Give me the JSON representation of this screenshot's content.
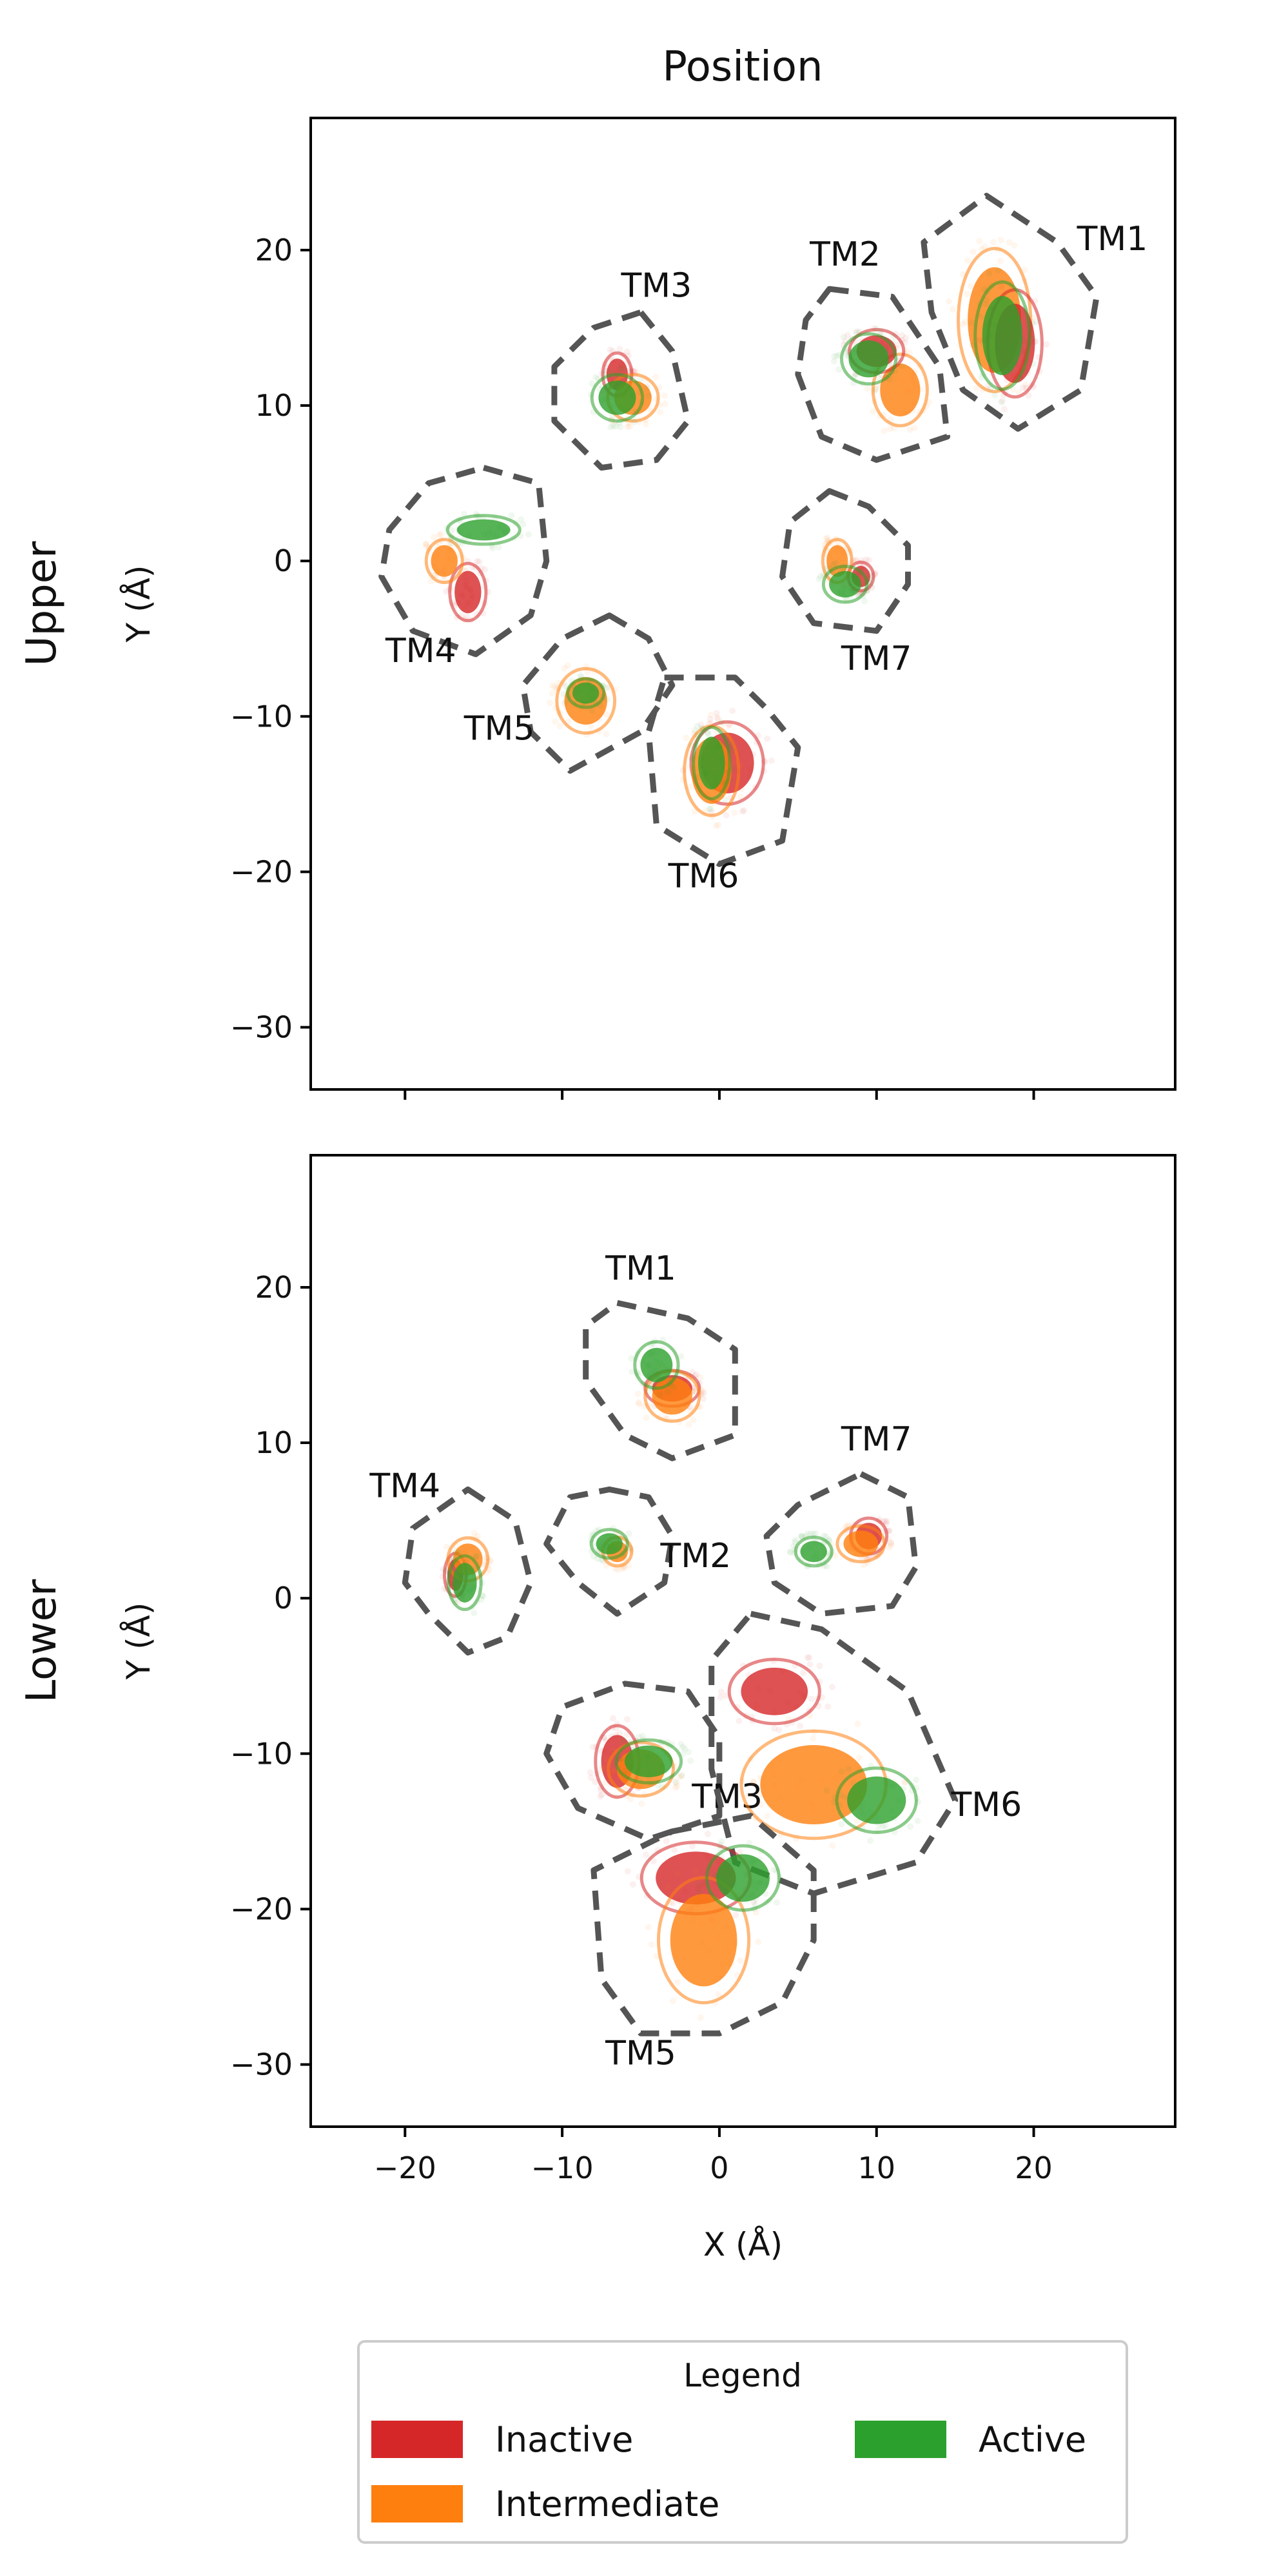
{
  "chart_data": {
    "type": "scatter",
    "title": "Position",
    "legend": {
      "title": "Legend",
      "placement": "bottom-center",
      "entries": [
        {
          "label": "Inactive",
          "color": "#d62728"
        },
        {
          "label": "Intermediate",
          "color": "#ff7f0e"
        },
        {
          "label": "Active",
          "color": "#2ca02c"
        }
      ]
    },
    "xlabel": "X (Å)",
    "ylabel": "Y (Å)",
    "xlim": [
      -26,
      29
    ],
    "ylim": [
      -34,
      28.5
    ],
    "xticks": [
      "−20",
      "−10",
      "0",
      "10",
      "20"
    ],
    "xtick_values": [
      -20,
      -10,
      0,
      10,
      20
    ],
    "yticks": [
      "20",
      "10",
      "0",
      "−10",
      "−20",
      "−30"
    ],
    "ytick_values": [
      20,
      10,
      0,
      -10,
      -20,
      -30
    ],
    "panels": [
      {
        "row_label": "Upper",
        "helices": [
          {
            "label": "TM1",
            "label_xy": [
              25,
              20
            ],
            "clusters": [
              {
                "state": "Intermediate",
                "x": 17.5,
                "y": 15.5,
                "rx": 2,
                "ry": 4
              },
              {
                "state": "Inactive",
                "x": 18.8,
                "y": 14,
                "rx": 1.5,
                "ry": 3
              },
              {
                "state": "Active",
                "x": 18,
                "y": 14.5,
                "rx": 1.5,
                "ry": 3
              }
            ],
            "hull": [
              [
                17,
                23.5
              ],
              [
                21.5,
                20.5
              ],
              [
                24,
                17
              ],
              [
                23,
                11
              ],
              [
                19,
                8.5
              ],
              [
                15.5,
                11
              ],
              [
                13.5,
                16
              ],
              [
                13,
                20.5
              ]
            ]
          },
          {
            "label": "TM2",
            "label_xy": [
              8,
              19
            ],
            "clusters": [
              {
                "state": "Intermediate",
                "x": 11.5,
                "y": 11,
                "rx": 1.5,
                "ry": 2
              },
              {
                "state": "Inactive",
                "x": 10,
                "y": 13.5,
                "rx": 1.5,
                "ry": 1.2
              },
              {
                "state": "Active",
                "x": 9.5,
                "y": 13,
                "rx": 1.5,
                "ry": 1.4
              }
            ],
            "hull": [
              [
                7,
                17.5
              ],
              [
                11,
                17
              ],
              [
                14,
                12.5
              ],
              [
                14.5,
                8
              ],
              [
                10,
                6.5
              ],
              [
                6.5,
                8
              ],
              [
                5,
                12
              ],
              [
                5.5,
                15.5
              ]
            ]
          },
          {
            "label": "TM3",
            "label_xy": [
              -4,
              17
            ],
            "clusters": [
              {
                "state": "Inactive",
                "x": -6.5,
                "y": 12,
                "rx": 0.8,
                "ry": 1.2
              },
              {
                "state": "Intermediate",
                "x": -5.5,
                "y": 10.5,
                "rx": 1.4,
                "ry": 1.3
              },
              {
                "state": "Active",
                "x": -6.5,
                "y": 10.5,
                "rx": 1.4,
                "ry": 1.3
              }
            ],
            "hull": [
              [
                -5,
                16
              ],
              [
                -3,
                13.5
              ],
              [
                -2,
                9
              ],
              [
                -4,
                6.5
              ],
              [
                -7.5,
                6
              ],
              [
                -10.5,
                9
              ],
              [
                -10.5,
                12.5
              ],
              [
                -8,
                15
              ]
            ]
          },
          {
            "label": "TM4",
            "label_xy": [
              -19,
              -6.5
            ],
            "clusters": [
              {
                "state": "Inactive",
                "x": -16,
                "y": -2,
                "rx": 1,
                "ry": 1.6
              },
              {
                "state": "Intermediate",
                "x": -17.5,
                "y": 0,
                "rx": 1,
                "ry": 1.2
              },
              {
                "state": "Active",
                "x": -15,
                "y": 2,
                "rx": 2,
                "ry": 0.8
              }
            ],
            "hull": [
              [
                -15,
                6
              ],
              [
                -11.5,
                5
              ],
              [
                -11,
                0
              ],
              [
                -12,
                -3.5
              ],
              [
                -15.5,
                -6
              ],
              [
                -19.5,
                -4.5
              ],
              [
                -21.5,
                -1
              ],
              [
                -21,
                2
              ],
              [
                -18.5,
                5
              ]
            ]
          },
          {
            "label": "TM5",
            "label_xy": [
              -14,
              -11.5
            ],
            "clusters": [
              {
                "state": "Intermediate",
                "x": -8.5,
                "y": -9,
                "rx": 1.6,
                "ry": 1.8
              },
              {
                "state": "Active",
                "x": -8.5,
                "y": -8.5,
                "rx": 1,
                "ry": 0.8
              }
            ],
            "hull": [
              [
                -7,
                -3.5
              ],
              [
                -4.5,
                -5
              ],
              [
                -3,
                -8
              ],
              [
                -5,
                -11
              ],
              [
                -9.5,
                -13.5
              ],
              [
                -12,
                -11
              ],
              [
                -12.5,
                -8
              ],
              [
                -10,
                -5
              ]
            ]
          },
          {
            "label": "TM6",
            "label_xy": [
              -1,
              -21
            ],
            "clusters": [
              {
                "state": "Inactive",
                "x": 0.5,
                "y": -13,
                "rx": 2,
                "ry": 2.3
              },
              {
                "state": "Intermediate",
                "x": -0.5,
                "y": -13.5,
                "rx": 1.5,
                "ry": 2.5
              },
              {
                "state": "Active",
                "x": -0.5,
                "y": -13,
                "rx": 1,
                "ry": 2
              }
            ],
            "hull": [
              [
                -3.5,
                -7.5
              ],
              [
                1,
                -7.5
              ],
              [
                3,
                -9.5
              ],
              [
                5,
                -12
              ],
              [
                4,
                -18
              ],
              [
                0,
                -19.5
              ],
              [
                -4,
                -17
              ],
              [
                -4.5,
                -11
              ]
            ]
          },
          {
            "label": "TM7",
            "label_xy": [
              10,
              -7
            ],
            "clusters": [
              {
                "state": "Inactive",
                "x": 9,
                "y": -1,
                "rx": 0.7,
                "ry": 0.8
              },
              {
                "state": "Intermediate",
                "x": 7.5,
                "y": 0,
                "rx": 0.8,
                "ry": 1.2
              },
              {
                "state": "Active",
                "x": 8,
                "y": -1.5,
                "rx": 1.2,
                "ry": 1
              }
            ],
            "hull": [
              [
                7,
                4.5
              ],
              [
                9.5,
                3.5
              ],
              [
                12,
                1
              ],
              [
                12,
                -1.5
              ],
              [
                10,
                -4.5
              ],
              [
                6,
                -4
              ],
              [
                4,
                -1
              ],
              [
                4.5,
                2.5
              ]
            ]
          }
        ]
      },
      {
        "row_label": "Lower",
        "helices": [
          {
            "label": "TM1",
            "label_xy": [
              -5,
              20.5
            ],
            "clusters": [
              {
                "state": "Inactive",
                "x": -3,
                "y": 13.5,
                "rx": 1.5,
                "ry": 1
              },
              {
                "state": "Intermediate",
                "x": -3,
                "y": 13,
                "rx": 1.5,
                "ry": 1.4
              },
              {
                "state": "Active",
                "x": -4,
                "y": 15,
                "rx": 1.2,
                "ry": 1.3
              }
            ],
            "hull": [
              [
                -6.5,
                19
              ],
              [
                -2,
                18
              ],
              [
                1,
                16
              ],
              [
                1,
                10.5
              ],
              [
                -3,
                9
              ],
              [
                -6,
                10.5
              ],
              [
                -8.5,
                14
              ],
              [
                -8.5,
                17.5
              ]
            ]
          },
          {
            "label": "TM2",
            "label_xy": [
              -1.5,
              2
            ],
            "clusters": [
              {
                "state": "Intermediate",
                "x": -6.5,
                "y": 3,
                "rx": 0.8,
                "ry": 0.8
              },
              {
                "state": "Active",
                "x": -7,
                "y": 3.5,
                "rx": 1,
                "ry": 0.8
              }
            ],
            "hull": [
              [
                -7,
                7
              ],
              [
                -4.5,
                6.5
              ],
              [
                -3,
                4
              ],
              [
                -3.5,
                1
              ],
              [
                -6.5,
                -1
              ],
              [
                -9,
                1
              ],
              [
                -11,
                3.5
              ],
              [
                -9.5,
                6.5
              ]
            ]
          },
          {
            "label": "TM4",
            "label_xy": [
              -20,
              6.5
            ],
            "clusters": [
              {
                "state": "Inactive",
                "x": -16.8,
                "y": 1.5,
                "rx": 0.6,
                "ry": 1.2
              },
              {
                "state": "Intermediate",
                "x": -16,
                "y": 2.5,
                "rx": 1.1,
                "ry": 1.2
              },
              {
                "state": "Active",
                "x": -16.2,
                "y": 1,
                "rx": 0.9,
                "ry": 1.5
              }
            ],
            "hull": [
              [
                -16,
                7
              ],
              [
                -13,
                5
              ],
              [
                -12,
                1
              ],
              [
                -13.5,
                -2.5
              ],
              [
                -16,
                -3.5
              ],
              [
                -18.5,
                -1
              ],
              [
                -20,
                1
              ],
              [
                -19.5,
                4.5
              ]
            ]
          },
          {
            "label": "TM7",
            "label_xy": [
              10,
              9.5
            ],
            "clusters": [
              {
                "state": "Inactive",
                "x": 9.5,
                "y": 4,
                "rx": 1,
                "ry": 1
              },
              {
                "state": "Intermediate",
                "x": 9,
                "y": 3.5,
                "rx": 1.3,
                "ry": 1
              },
              {
                "state": "Active",
                "x": 6,
                "y": 3,
                "rx": 1,
                "ry": 0.8
              }
            ],
            "hull": [
              [
                9,
                8
              ],
              [
                12,
                6.5
              ],
              [
                12.5,
                2
              ],
              [
                11,
                -0.5
              ],
              [
                6.5,
                -1
              ],
              [
                3.5,
                1
              ],
              [
                3,
                4
              ],
              [
                5,
                6
              ]
            ]
          },
          {
            "label": "TM3",
            "label_xy": [
              0.5,
              -13.5
            ],
            "clusters": [
              {
                "state": "Inactive",
                "x": -6.5,
                "y": -10.5,
                "rx": 1.2,
                "ry": 2
              },
              {
                "state": "Intermediate",
                "x": -5,
                "y": -11,
                "rx": 1.8,
                "ry": 1.5
              },
              {
                "state": "Active",
                "x": -4.5,
                "y": -10.5,
                "rx": 1.8,
                "ry": 1.2
              }
            ],
            "hull": [
              [
                -6,
                -5.5
              ],
              [
                -2,
                -6
              ],
              [
                0,
                -9
              ],
              [
                0,
                -14
              ],
              [
                -4.5,
                -15.5
              ],
              [
                -9,
                -13.5
              ],
              [
                -11,
                -10
              ],
              [
                -10,
                -7
              ]
            ]
          },
          {
            "label": "TM6",
            "label_xy": [
              17,
              -14
            ],
            "clusters": [
              {
                "state": "Inactive",
                "x": 3.5,
                "y": -6,
                "rx": 2.5,
                "ry": 1.8
              },
              {
                "state": "Intermediate",
                "x": 6,
                "y": -12,
                "rx": 4,
                "ry": 3
              },
              {
                "state": "Active",
                "x": 10,
                "y": -13,
                "rx": 2.2,
                "ry": 1.8
              }
            ],
            "hull": [
              [
                2,
                -1
              ],
              [
                6.5,
                -2
              ],
              [
                12,
                -6
              ],
              [
                15,
                -13
              ],
              [
                12.5,
                -17
              ],
              [
                6,
                -19
              ],
              [
                1,
                -17
              ],
              [
                -0.5,
                -11
              ],
              [
                -0.5,
                -4
              ]
            ]
          },
          {
            "label": "TM5",
            "label_xy": [
              -5,
              -30
            ],
            "clusters": [
              {
                "state": "Inactive",
                "x": -1.5,
                "y": -18,
                "rx": 3,
                "ry": 2
              },
              {
                "state": "Intermediate",
                "x": -1,
                "y": -22,
                "rx": 2.5,
                "ry": 3.5
              },
              {
                "state": "Active",
                "x": 1.5,
                "y": -18,
                "rx": 2,
                "ry": 1.8
              }
            ],
            "hull": [
              [
                -3,
                -15
              ],
              [
                2,
                -14
              ],
              [
                6,
                -17.5
              ],
              [
                6,
                -22
              ],
              [
                4,
                -26
              ],
              [
                0,
                -28
              ],
              [
                -5,
                -28
              ],
              [
                -7.5,
                -24.5
              ],
              [
                -8,
                -17.5
              ]
            ]
          }
        ]
      }
    ]
  }
}
